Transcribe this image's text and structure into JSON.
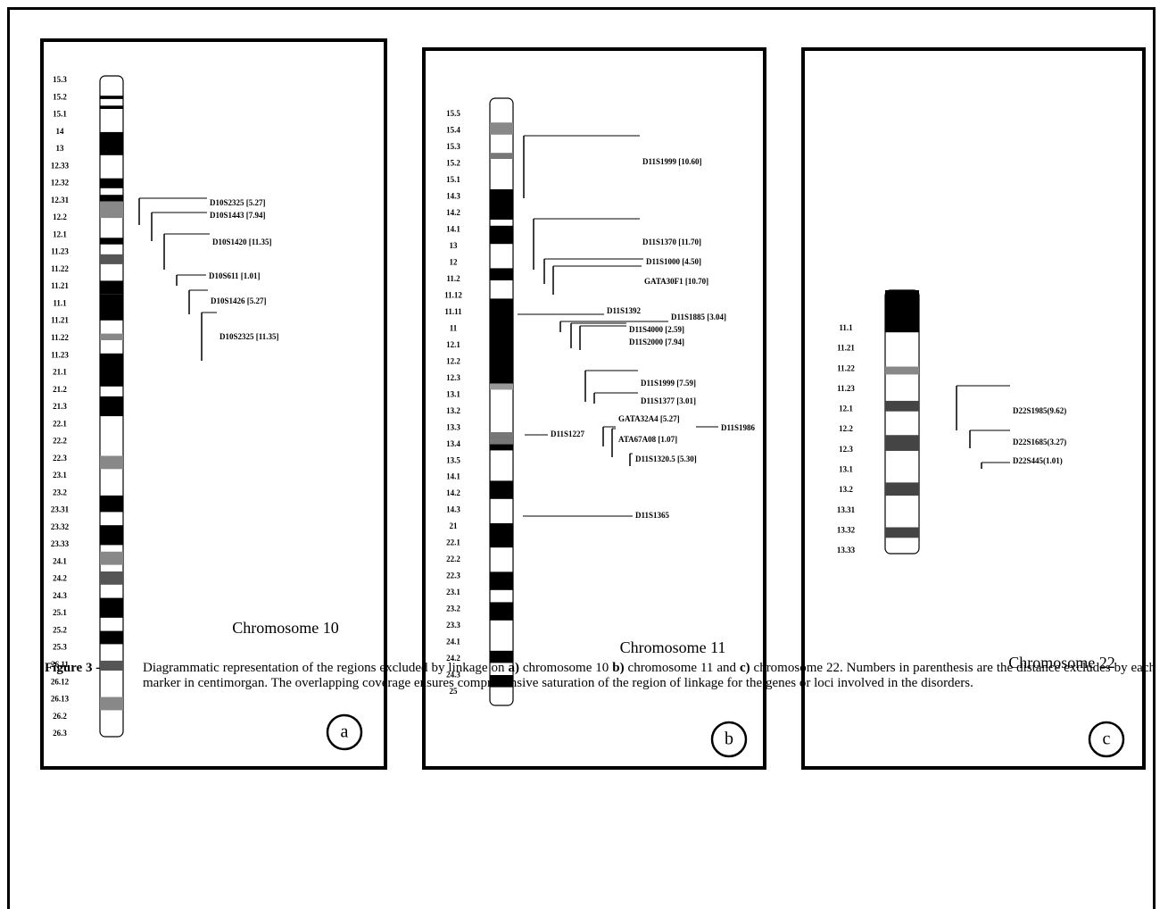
{
  "panels": [
    {
      "label": "a",
      "title": "Chromosome 10",
      "bands": [
        "15.3",
        "15.2",
        "15.1",
        "14",
        "13",
        "12.33",
        "12.32",
        "12.31",
        "12.2",
        "12.1",
        "11.23",
        "11.22",
        "11.21",
        "11.1",
        "11.21",
        "11.22",
        "11.23",
        "21.1",
        "21.2",
        "21.3",
        "22.1",
        "22.2",
        "22.3",
        "23.1",
        "23.2",
        "23.31",
        "23.32",
        "23.33",
        "24.1",
        "24.2",
        "24.3",
        "25.1",
        "25.2",
        "25.3",
        "26.11",
        "26.12",
        "26.13",
        "26.2",
        "26.3"
      ],
      "markers": [
        "D10S2325 [5.27]",
        "D10S1443 [7.94]",
        "D10S1420 [11.35]",
        "D10S611 [1.01]",
        "D10S1426 [5.27]",
        "D10S2325 [11.35]"
      ]
    },
    {
      "label": "b",
      "title": "Chromosome 11",
      "bands": [
        "15.5",
        "15.4",
        "15.3",
        "15.2",
        "15.1",
        "14.3",
        "14.2",
        "14.1",
        "13",
        "12",
        "11.2",
        "11.12",
        "11.11",
        "11",
        "12.1",
        "12.2",
        "12.3",
        "13.1",
        "13.2",
        "13.3",
        "13.4",
        "13.5",
        "14.1",
        "14.2",
        "14.3",
        "21",
        "22.1",
        "22.2",
        "22.3",
        "23.1",
        "23.2",
        "23.3",
        "24.1",
        "24.2",
        "24.3",
        "25"
      ],
      "markers": [
        "D11S1999 [10.60]",
        "D11S1370 [11.70]",
        "D11S1000 [4.50]",
        "GATA30F1 [10.70]",
        "D11S1392",
        "D11S1885 [3.04]",
        "D11S4000 [2.59]",
        "D11S2000 [7.94]",
        "D11S1999 [7.59]",
        "D11S1377 [3.01]",
        "GATA32A4 [5.27]",
        "D11S1986",
        "D11S1227",
        "ATA67A08 [1.07]",
        "D11S1320.5 [5.30]",
        "D11S1365"
      ]
    },
    {
      "label": "c",
      "title": "Chromosome 22",
      "bands": [
        "11.1",
        "11.21",
        "11.22",
        "11.23",
        "12.1",
        "12.2",
        "12.3",
        "13.1",
        "13.2",
        "13.31",
        "13.32",
        "13.33"
      ],
      "markers": [
        "D22S1985(9.62)",
        "D22S1685(3.27)",
        "D22S445(1.01)"
      ]
    }
  ],
  "caption": {
    "label": "Figure 3 -",
    "segments": [
      {
        "text": "Diagrammatic representation of the regions excluded by linkage on ",
        "bold": false
      },
      {
        "text": "a)",
        "bold": true
      },
      {
        "text": " chromosome 10 ",
        "bold": false
      },
      {
        "text": "b)",
        "bold": true
      },
      {
        "text": " chromosome 11 and ",
        "bold": false
      },
      {
        "text": "c)",
        "bold": true
      },
      {
        "text": " chromosome 22. Numbers in parenthesis are the distance excludes by each marker in centimorgan. The overlapping coverage ensures comprehensive saturation of the region of linkage for the genes or loci involved in the disorders.",
        "bold": false
      }
    ]
  }
}
